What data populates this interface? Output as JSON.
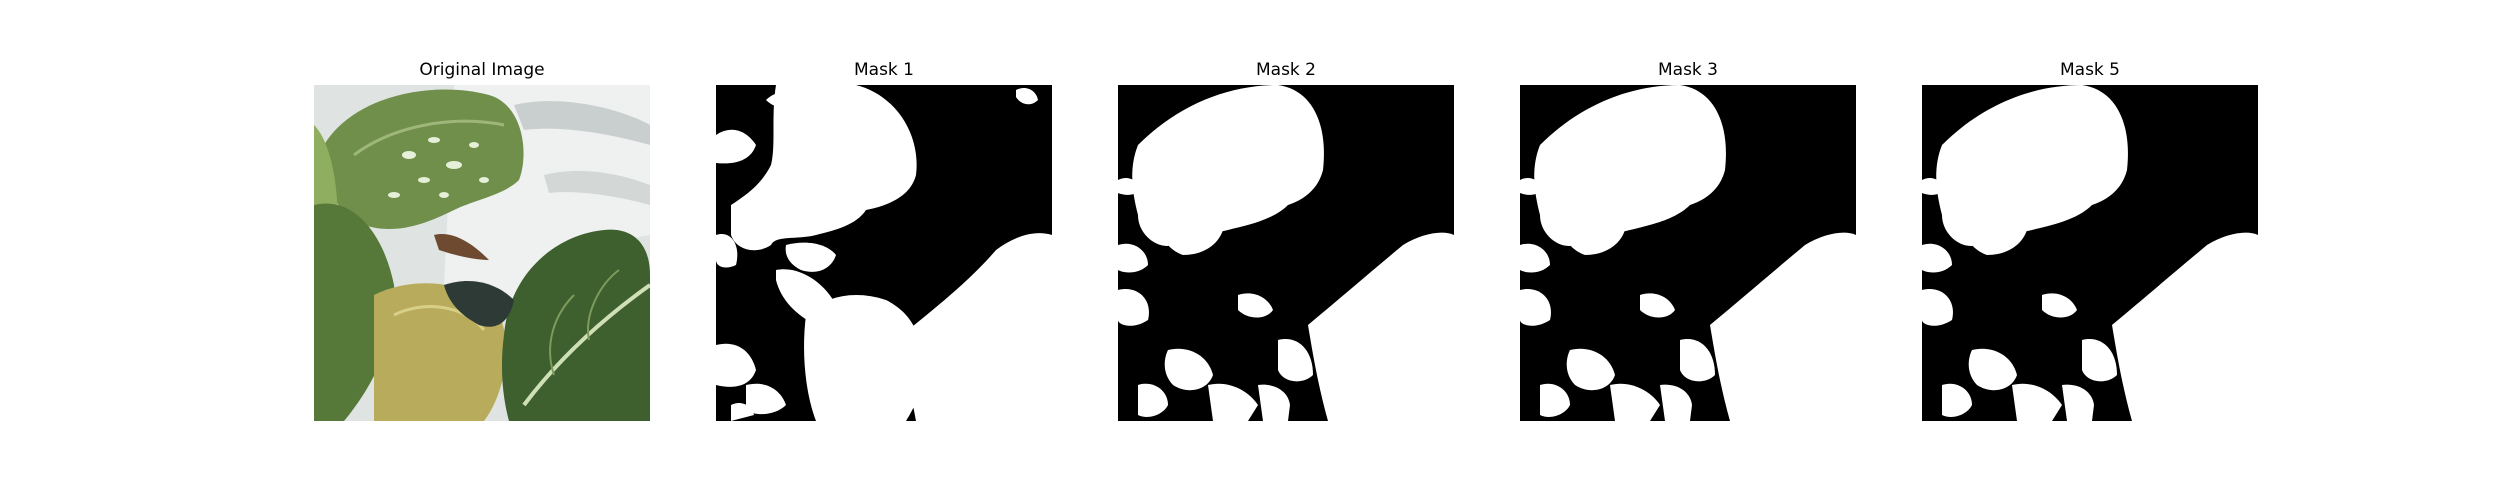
{
  "figure": {
    "panels": [
      {
        "title": "Original Image",
        "kind": "photo"
      },
      {
        "title": "Mask 1",
        "kind": "mask"
      },
      {
        "title": "Mask 2",
        "kind": "mask"
      },
      {
        "title": "Mask 3",
        "kind": "mask"
      },
      {
        "title": "Mask 5",
        "kind": "mask"
      }
    ]
  },
  "colors": {
    "mask_foreground": "#ffffff",
    "mask_background": "#000000",
    "leaf_dark": "#3e5f2e",
    "leaf_mid": "#6f8f4a",
    "leaf_light": "#a9bf7d",
    "leaf_yellow": "#b8ac5c",
    "background_white": "#e9eceb"
  }
}
